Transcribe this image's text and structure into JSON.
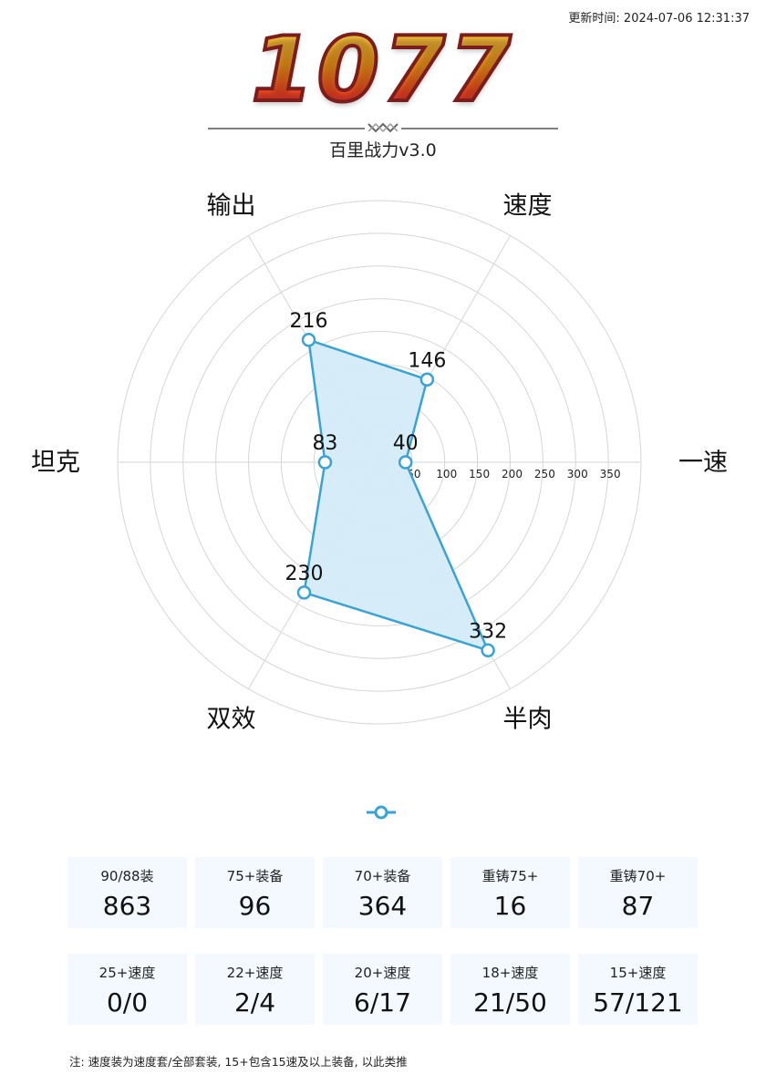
{
  "header": {
    "timestamp": "更新时间: 2024-07-06 12:31:37",
    "score": "1077",
    "subtitle": "百里战力v3.0"
  },
  "chart_data": {
    "type": "radar",
    "axes": [
      "一速",
      "速度",
      "输出",
      "坦克",
      "双效",
      "半肉"
    ],
    "values": [
      40,
      146,
      216,
      83,
      230,
      332
    ],
    "radial_ticks": [
      50,
      100,
      150,
      200,
      250,
      300,
      350
    ],
    "rmax": 400,
    "grid": true,
    "colors": {
      "line": "#3aa3d6",
      "fill": "#d4ebf8",
      "grid": "#d6d6d6"
    }
  },
  "stats": {
    "row1": [
      {
        "label": "90/88装",
        "value": "863"
      },
      {
        "label": "75+装备",
        "value": "96"
      },
      {
        "label": "70+装备",
        "value": "364"
      },
      {
        "label": "重铸75+",
        "value": "16"
      },
      {
        "label": "重铸70+",
        "value": "87"
      }
    ],
    "row2": [
      {
        "label": "25+速度",
        "value": "0/0"
      },
      {
        "label": "22+速度",
        "value": "2/4"
      },
      {
        "label": "20+速度",
        "value": "6/17"
      },
      {
        "label": "18+速度",
        "value": "21/50"
      },
      {
        "label": "15+速度",
        "value": "57/121"
      }
    ]
  },
  "footnote": "注: 速度装为速度套/全部套装, 15+包含15速及以上装备, 以此类推"
}
